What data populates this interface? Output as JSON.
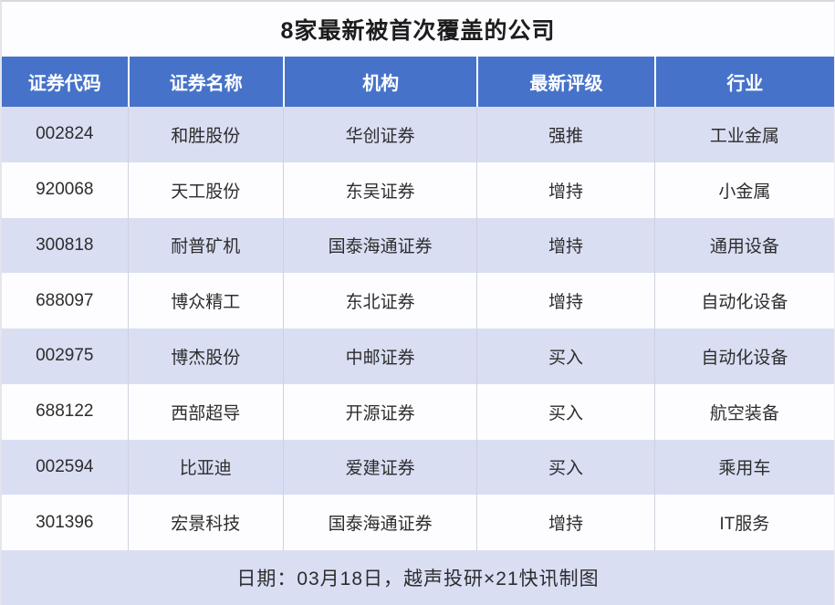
{
  "title": "8家最新被首次覆盖的公司",
  "footer": {
    "caption": "日期：03月18日，越声投研×21快讯制图"
  },
  "colors": {
    "header_bg": "#4673c9",
    "header_text": "#ffffff",
    "row_alt_bg": "#d9def3",
    "row_bg": "#fdfdff",
    "footer_bg": "#d9def3",
    "body_text": "#2d2d2d"
  },
  "chart_data": {
    "type": "table",
    "title": "8家最新被首次覆盖的公司",
    "columns": [
      "证券代码",
      "证券名称",
      "机构",
      "最新评级",
      "行业"
    ],
    "rows": [
      [
        "002824",
        "和胜股份",
        "华创证券",
        "强推",
        "工业金属"
      ],
      [
        "920068",
        "天工股份",
        "东吴证券",
        "增持",
        "小金属"
      ],
      [
        "300818",
        "耐普矿机",
        "国泰海通证券",
        "增持",
        "通用设备"
      ],
      [
        "688097",
        "博众精工",
        "东北证券",
        "增持",
        "自动化设备"
      ],
      [
        "002975",
        "博杰股份",
        "中邮证券",
        "买入",
        "自动化设备"
      ],
      [
        "688122",
        "西部超导",
        "开源证券",
        "买入",
        "航空装备"
      ],
      [
        "002594",
        "比亚迪",
        "爱建证券",
        "买入",
        "乘用车"
      ],
      [
        "301396",
        "宏景科技",
        "国泰海通证券",
        "增持",
        "IT服务"
      ]
    ],
    "caption": "日期：03月18日，越声投研×21快讯制图",
    "layout": {
      "zebra_striping": true,
      "first_row_shaded": true,
      "column_lines": true
    }
  }
}
